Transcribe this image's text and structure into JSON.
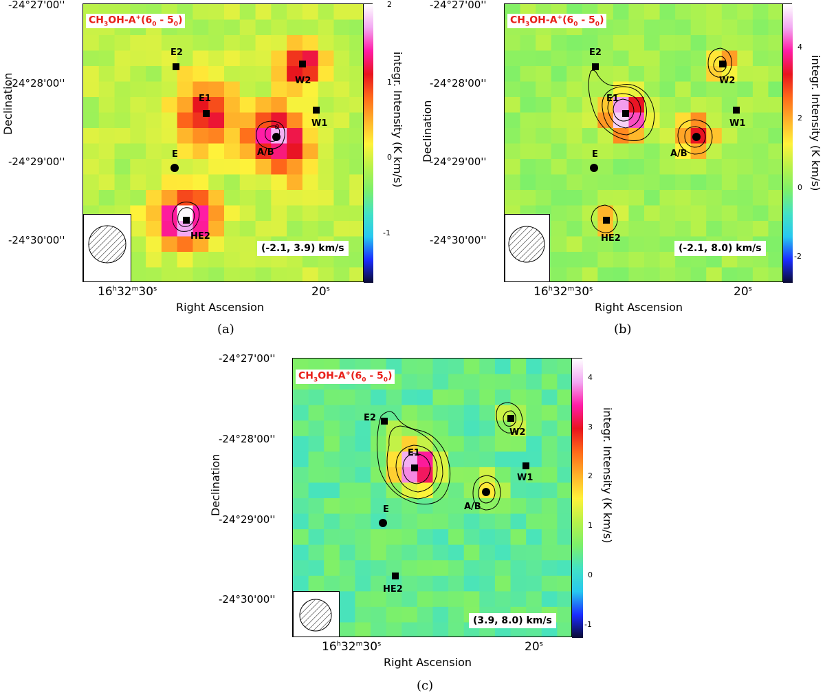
{
  "line_label": {
    "prefix": "CH",
    "sub1": "3",
    "mid": "OH-A",
    "sup": "+",
    "open": "(6",
    "sub2": "0",
    "dash": " - 5",
    "sub3": "0",
    "close": ")"
  },
  "axis": {
    "declination_title": "Declination",
    "ra_title": "Right Ascension",
    "colorbar_title": "integr. Intensity (K km/s)",
    "dec_ticks": [
      "-24°27'00''",
      "-24°28'00''",
      "-24°29'00''",
      "-24°30'00''"
    ],
    "ra_ticks": [
      {
        "h": "16",
        "hs": "h",
        "m": "32",
        "ms": "m",
        "s": "30",
        "ss": "s"
      },
      {
        "s": "20",
        "ss": "s"
      }
    ]
  },
  "panels": [
    {
      "caption": "(a)",
      "velocity": "(-2.1, 3.9) km/s",
      "colorbar_ticks": [
        "2",
        "1",
        "0",
        "-1"
      ],
      "sources": [
        {
          "name": "E2",
          "shape": "square"
        },
        {
          "name": "E1",
          "shape": "square"
        },
        {
          "name": "W2",
          "shape": "square"
        },
        {
          "name": "W1",
          "shape": "square"
        },
        {
          "name": "A/B",
          "shape": "circle"
        },
        {
          "name": "E",
          "shape": "circle"
        },
        {
          "name": "HE2",
          "shape": "square"
        }
      ]
    },
    {
      "caption": "(b)",
      "velocity": "(-2.1, 8.0) km/s",
      "colorbar_ticks": [
        "4",
        "2",
        "0",
        "-2"
      ],
      "sources": [
        {
          "name": "E2",
          "shape": "square"
        },
        {
          "name": "E1",
          "shape": "square"
        },
        {
          "name": "W2",
          "shape": "square"
        },
        {
          "name": "W1",
          "shape": "square"
        },
        {
          "name": "A/B",
          "shape": "circle"
        },
        {
          "name": "E",
          "shape": "circle"
        },
        {
          "name": "HE2",
          "shape": "square"
        }
      ]
    },
    {
      "caption": "(c)",
      "velocity": "(3.9, 8.0) km/s",
      "colorbar_ticks": [
        "4",
        "3",
        "2",
        "1",
        "0",
        "-1"
      ],
      "sources": [
        {
          "name": "E2",
          "shape": "square"
        },
        {
          "name": "E1",
          "shape": "square"
        },
        {
          "name": "W2",
          "shape": "square"
        },
        {
          "name": "W1",
          "shape": "square"
        },
        {
          "name": "A/B",
          "shape": "circle"
        },
        {
          "name": "E",
          "shape": "circle"
        },
        {
          "name": "HE2",
          "shape": "square"
        }
      ]
    }
  ],
  "colors": {
    "label_red": "#e8201a",
    "colormap": [
      "#0a0a2e",
      "#1a2cff",
      "#27c8f0",
      "#43e2c4",
      "#7cf06a",
      "#b7f24a",
      "#fff23a",
      "#ffb22a",
      "#ff6a1a",
      "#e8141e",
      "#ff1ca6",
      "#f2a8f2",
      "#ffffff"
    ]
  }
}
